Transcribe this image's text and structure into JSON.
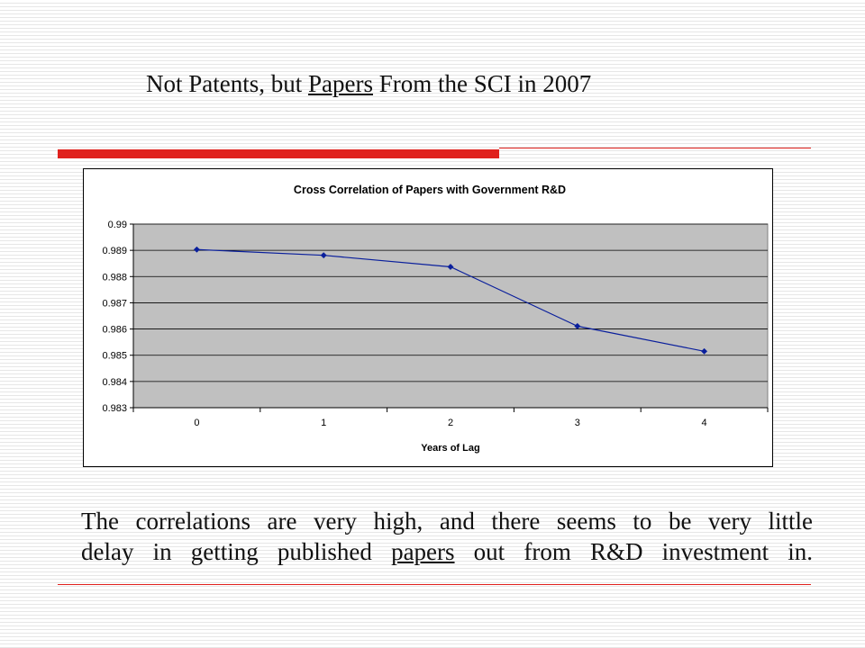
{
  "slide": {
    "title_pre": "Not Patents, but ",
    "title_underlined": "Papers",
    "title_post": " From the SCI in 2007",
    "body_line1": "The correlations are very high, and there seems to be very little",
    "body_line2_pre": "delay in getting published ",
    "body_line2_underlined": "papers",
    "body_line2_post": " out from R&D investment in."
  },
  "colors": {
    "accent_red": "#e0211d",
    "plot_bg": "#c0c0c0",
    "series_line": "#0a1f9c"
  },
  "chart_data": {
    "type": "line",
    "title": "Cross Correlation of Papers with Government R&D",
    "xlabel": "Years of Lag",
    "ylabel": "",
    "categories": [
      "0",
      "1",
      "2",
      "3",
      "4"
    ],
    "series": [
      {
        "values": [
          0.98903,
          0.98881,
          0.98837,
          0.98611,
          0.98515
        ]
      }
    ],
    "ylim": [
      0.983,
      0.99
    ],
    "yticks": [
      "0.983",
      "0.984",
      "0.985",
      "0.986",
      "0.987",
      "0.988",
      "0.989",
      "0.99"
    ],
    "grid": true,
    "legend": "none"
  }
}
